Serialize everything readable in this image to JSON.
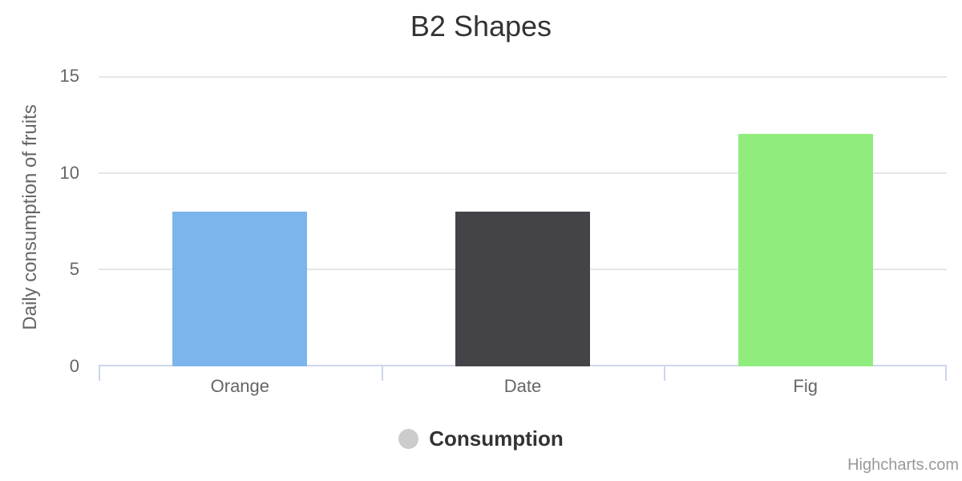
{
  "legend": {
    "label": "Consumption",
    "marker_color": "#cccccc"
  },
  "credit": {
    "label": "Highcharts.com"
  },
  "chart_data": {
    "type": "bar",
    "title": "B2 Shapes",
    "categories": [
      "Orange",
      "Date",
      "Fig"
    ],
    "series": [
      {
        "name": "Consumption",
        "values": [
          8,
          8,
          12
        ]
      }
    ],
    "point_colors": [
      "#7cb5ec",
      "#434348",
      "#90ed7d"
    ],
    "xlabel": "",
    "ylabel": "Daily consumption of fruits",
    "ylim": [
      0,
      15
    ],
    "yticks": [
      0,
      5,
      10,
      15
    ],
    "grid": true,
    "legend_position": "bottom",
    "styles": {
      "background": "#ffffff",
      "grid_color": "#e6e6e6",
      "axis_line_color": "#ccd6eb",
      "axis_text_color": "#666666",
      "title_color": "#333333",
      "legend_text_color": "#333333",
      "credit_color": "#999999"
    }
  }
}
